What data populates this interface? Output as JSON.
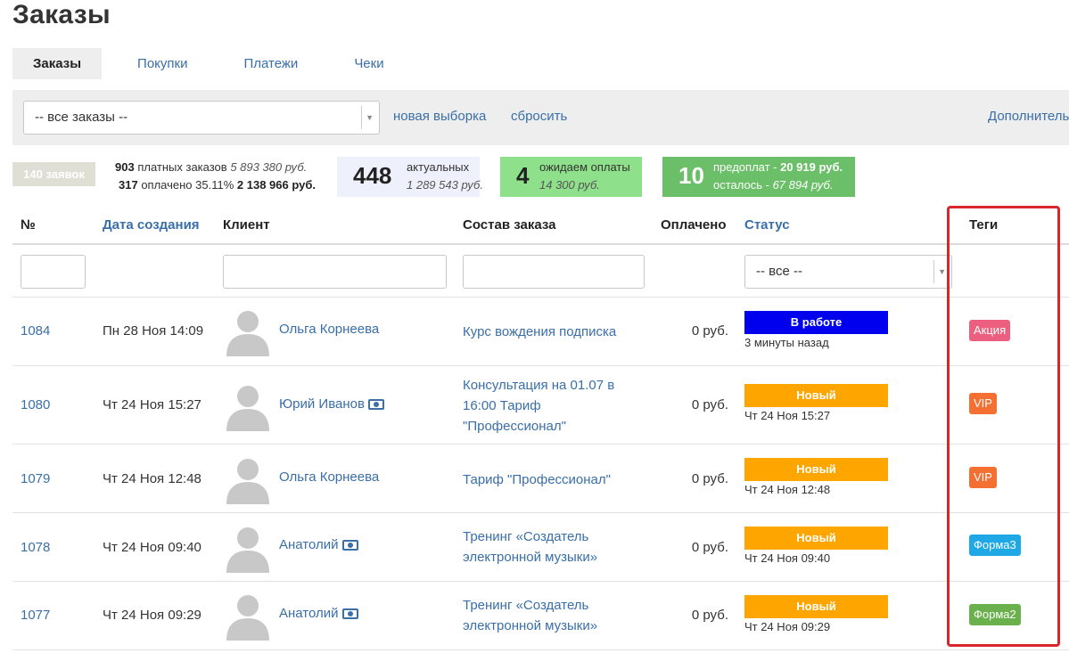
{
  "page": {
    "title": "Заказы"
  },
  "tabs": [
    {
      "label": "Заказы",
      "active": true
    },
    {
      "label": "Покупки",
      "active": false
    },
    {
      "label": "Платежи",
      "active": false
    },
    {
      "label": "Чеки",
      "active": false
    }
  ],
  "filters": {
    "select_value": "-- все заказы --",
    "new_selection": "новая выборка",
    "reset": "сбросить",
    "more": "Дополнитель"
  },
  "stats": {
    "requests": "140 заявок",
    "paid_orders_count": "903",
    "paid_orders_label": "платных заказов",
    "paid_orders_sum": "5 893 380 руб.",
    "paid_count": "317",
    "paid_label": "оплачено 35.11%",
    "paid_sum": "2 138 966 руб.",
    "actual_count": "448",
    "actual_label": "актуальных",
    "actual_sum": "1 289 543 руб.",
    "awaiting_count": "4",
    "awaiting_label": "ожидаем оплаты",
    "awaiting_sum": "14 300 руб.",
    "prepay_count": "10",
    "prepay_label": "предоплат - ",
    "prepay_sum": "20 919 руб.",
    "remain_label": "осталось - ",
    "remain_sum": "67 894 руб."
  },
  "table": {
    "headers": {
      "num": "№",
      "created": "Дата создания",
      "client": "Клиент",
      "items": "Состав заказа",
      "paid": "Оплачено",
      "status": "Статус",
      "tags": "Теги"
    },
    "status_filter": "-- все --",
    "rows": [
      {
        "id": "1084",
        "date": "Пн 28 Ноя 14:09",
        "client": "Ольга Корнеева",
        "money_icon": false,
        "items": "Курс вождения подписка",
        "paid": "0 руб.",
        "status": "В работе",
        "status_color": "#0000ee",
        "status_sub": "3 минуты назад",
        "tag": "Акция",
        "tag_color": "#ec5f7e"
      },
      {
        "id": "1080",
        "date": "Чт 24 Ноя 15:27",
        "client": "Юрий Иванов",
        "money_icon": true,
        "items": "Консультация на 01.07 в 16:00 Тариф \"Профессионал\"",
        "paid": "0 руб.",
        "status": "Новый",
        "status_color": "#ffa500",
        "status_sub": "Чт 24 Ноя 15:27",
        "tag": "VIP",
        "tag_color": "#f47032"
      },
      {
        "id": "1079",
        "date": "Чт 24 Ноя 12:48",
        "client": "Ольга Корнеева",
        "money_icon": false,
        "items": "Тариф \"Профессионал\"",
        "paid": "0 руб.",
        "status": "Новый",
        "status_color": "#ffa500",
        "status_sub": "Чт 24 Ноя 12:48",
        "tag": "VIP",
        "tag_color": "#f47032"
      },
      {
        "id": "1078",
        "date": "Чт 24 Ноя 09:40",
        "client": "Анатолий",
        "money_icon": true,
        "items": "Тренинг «Создатель электронной музыки»",
        "paid": "0 руб.",
        "status": "Новый",
        "status_color": "#ffa500",
        "status_sub": "Чт 24 Ноя 09:40",
        "tag": "Форма3",
        "tag_color": "#1fa8e6"
      },
      {
        "id": "1077",
        "date": "Чт 24 Ноя 09:29",
        "client": "Анатолий",
        "money_icon": true,
        "items": "Тренинг «Создатель электронной музыки»",
        "paid": "0 руб.",
        "status": "Новый",
        "status_color": "#ffa500",
        "status_sub": "Чт 24 Ноя 09:29",
        "tag": "Форма2",
        "tag_color": "#6ab04c"
      }
    ]
  },
  "colors": {
    "link": "#3a6fa8",
    "stat_actual_bg": "#eef0fb",
    "stat_awaiting_bg": "#8fe08a",
    "stat_prepay_bg": "#6bbf68",
    "highlight": "#d9262b"
  }
}
